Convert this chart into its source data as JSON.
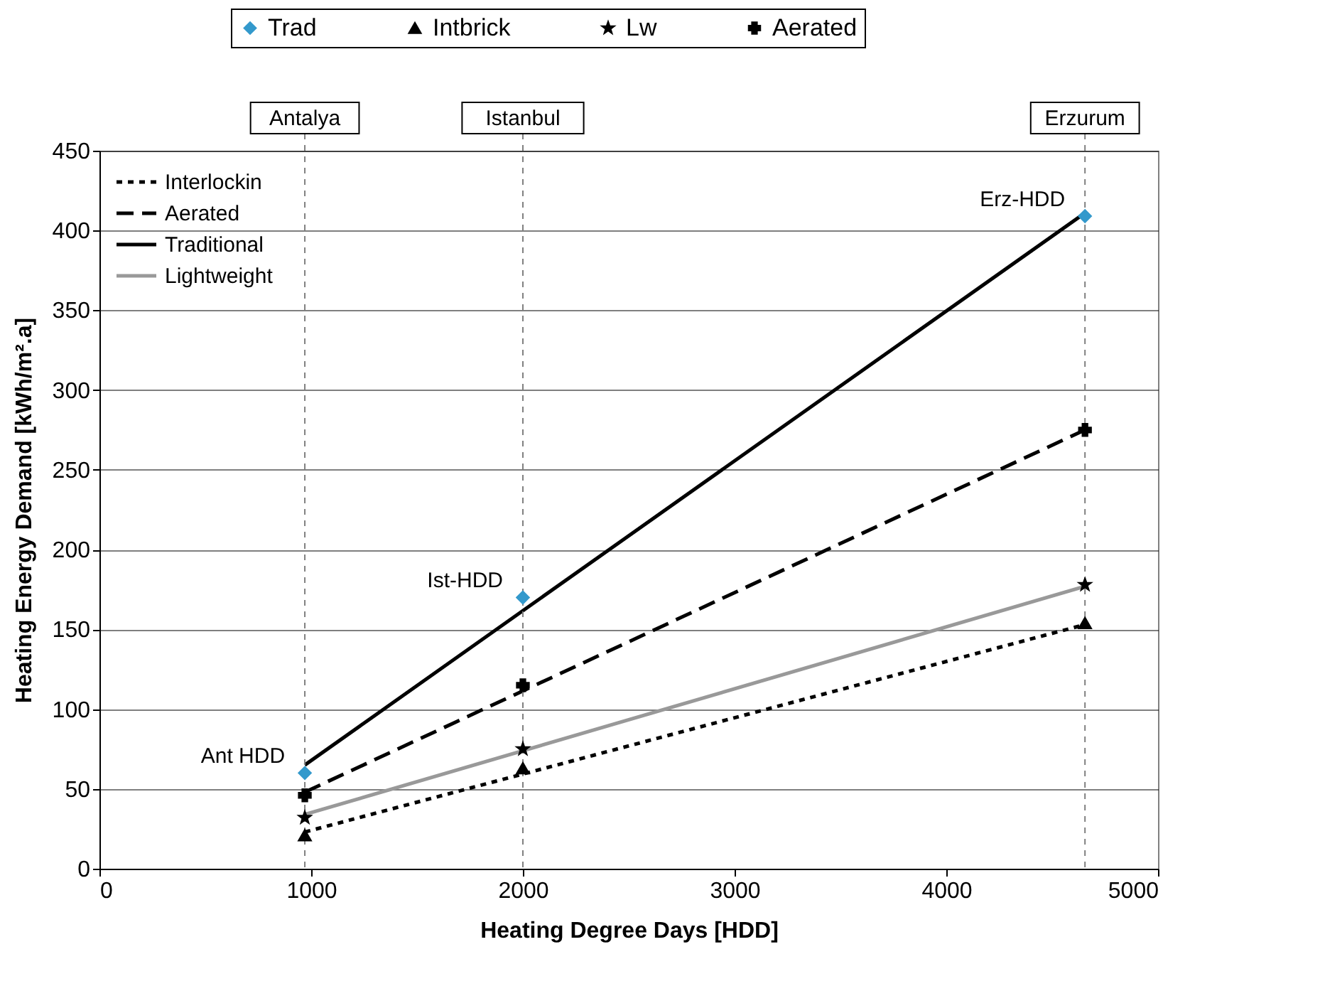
{
  "chart_data": {
    "type": "scatter",
    "xlabel": "Heating Degree Days [HDD]",
    "ylabel": "Heating Energy Demand [kWh/m².a]",
    "xlim": [
      0,
      5000
    ],
    "xticks": [
      0,
      1000,
      2000,
      3000,
      4000,
      5000
    ],
    "ylim": [
      0,
      450
    ],
    "yticks": [
      0,
      50,
      100,
      150,
      200,
      250,
      300,
      350,
      400,
      450
    ],
    "grid": "y",
    "legend": "top",
    "series": [
      {
        "name": "Trad",
        "marker": "diamond",
        "color": "#3399cc",
        "x": [
          970,
          2000,
          4655
        ],
        "values": [
          60,
          170,
          409
        ]
      },
      {
        "name": "Intbrick",
        "marker": "triangle",
        "color": "#000000",
        "x": [
          970,
          2000,
          4655
        ],
        "values": [
          21,
          63,
          154
        ]
      },
      {
        "name": "Lw",
        "marker": "star",
        "color": "#000000",
        "x": [
          970,
          2000,
          4655
        ],
        "values": [
          32,
          75,
          178
        ]
      },
      {
        "name": "Aerated",
        "marker": "cross",
        "color": "#000000",
        "x": [
          970,
          2000,
          4655
        ],
        "values": [
          46,
          115,
          275
        ]
      },
      {
        "name": "Interlockin",
        "type": "line",
        "line_style": "dotted",
        "color": "#000000",
        "x": [
          970,
          4655
        ],
        "values": [
          23,
          153
        ]
      },
      {
        "name": "Aerated",
        "type": "line",
        "line_style": "dashed",
        "color": "#000000",
        "x": [
          970,
          4655
        ],
        "values": [
          48,
          275
        ]
      },
      {
        "name": "Traditional",
        "type": "line",
        "line_style": "solid",
        "color": "#000000",
        "x": [
          970,
          4655
        ],
        "values": [
          65,
          411
        ]
      },
      {
        "name": "Lightweight",
        "type": "line",
        "line_style": "solid",
        "color": "#999999",
        "x": [
          970,
          4655
        ],
        "values": [
          34,
          177
        ]
      }
    ],
    "ref_lines": [
      {
        "axis": "x",
        "value": 970,
        "label": "Antalya",
        "color": "#808080",
        "line_style": "dotted"
      },
      {
        "axis": "x",
        "value": 2000,
        "label": "Istanbul",
        "color": "#808080",
        "line_style": "dotted"
      },
      {
        "axis": "x",
        "value": 4655,
        "label": "Erzurum",
        "color": "#808080",
        "line_style": "dotted"
      }
    ],
    "annotations": [
      {
        "text": "Ant HDD",
        "x": 970,
        "y": 60
      },
      {
        "text": "Ist-HDD",
        "x": 2000,
        "y": 170
      },
      {
        "text": "Erz-HDD",
        "x": 4655,
        "y": 409
      }
    ]
  }
}
